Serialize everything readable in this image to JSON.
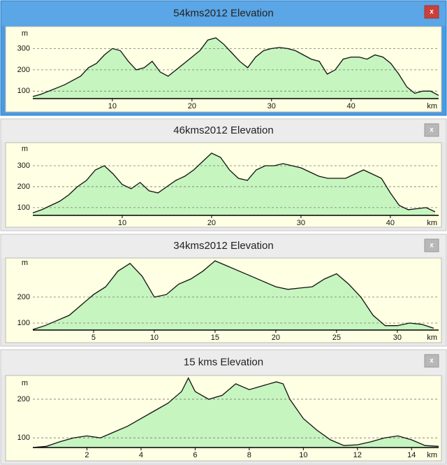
{
  "window_close_label": "x",
  "chart_data": [
    {
      "type": "area",
      "title": "54kms2012 Elevation",
      "active": true,
      "y_label": "m",
      "x_label": "km",
      "color": "#c6f5bf",
      "line_color": "#111111",
      "grid": true,
      "xlim": [
        0,
        51
      ],
      "ylim": [
        65,
        380
      ],
      "xticks": [
        10,
        20,
        30,
        40
      ],
      "yticks": [
        100,
        200,
        300
      ],
      "x": [
        0,
        1,
        2,
        3,
        4,
        5,
        6,
        7,
        8,
        9,
        10,
        11,
        12,
        13,
        14,
        15,
        16,
        17,
        18,
        19,
        20,
        21,
        22,
        23,
        24,
        25,
        26,
        27,
        28,
        29,
        30,
        31,
        32,
        33,
        34,
        35,
        36,
        37,
        38,
        39,
        40,
        41,
        42,
        43,
        44,
        45,
        46,
        47,
        48,
        49,
        50,
        51
      ],
      "values": [
        75,
        85,
        100,
        115,
        130,
        150,
        170,
        210,
        230,
        270,
        300,
        290,
        240,
        200,
        210,
        240,
        190,
        170,
        200,
        230,
        260,
        290,
        340,
        350,
        320,
        280,
        240,
        210,
        260,
        290,
        300,
        305,
        300,
        290,
        270,
        250,
        240,
        180,
        200,
        250,
        260,
        260,
        250,
        270,
        260,
        230,
        180,
        120,
        90,
        100,
        100,
        80
      ]
    },
    {
      "type": "area",
      "title": "46kms2012 Elevation",
      "active": false,
      "y_label": "m",
      "x_label": "km",
      "color": "#c6f5bf",
      "line_color": "#111111",
      "grid": true,
      "xlim": [
        0,
        45.4
      ],
      "ylim": [
        63,
        390
      ],
      "xticks": [
        10,
        20,
        30,
        40
      ],
      "yticks": [
        100,
        200,
        300
      ],
      "x": [
        0,
        1,
        2,
        3,
        4,
        5,
        6,
        7,
        8,
        9,
        10,
        11,
        12,
        13,
        14,
        15,
        16,
        17,
        18,
        19,
        20,
        21,
        22,
        23,
        24,
        25,
        26,
        27,
        28,
        29,
        30,
        31,
        32,
        33,
        34,
        35,
        36,
        37,
        38,
        39,
        40,
        41,
        42,
        43,
        44,
        45
      ],
      "values": [
        75,
        90,
        110,
        130,
        160,
        200,
        230,
        280,
        300,
        260,
        210,
        190,
        220,
        180,
        170,
        200,
        230,
        250,
        280,
        320,
        360,
        340,
        280,
        240,
        230,
        280,
        300,
        300,
        310,
        300,
        290,
        270,
        250,
        240,
        240,
        240,
        260,
        280,
        260,
        240,
        170,
        110,
        90,
        95,
        100,
        80
      ]
    },
    {
      "type": "area",
      "title": "34kms2012 Elevation",
      "active": false,
      "y_label": "m",
      "x_label": "km",
      "color": "#c6f5bf",
      "line_color": "#111111",
      "grid": true,
      "xlim": [
        0,
        33.4
      ],
      "ylim": [
        73,
        340
      ],
      "xticks": [
        5,
        10,
        15,
        20,
        25,
        30
      ],
      "yticks": [
        100,
        200
      ],
      "x": [
        0,
        1,
        2,
        3,
        4,
        5,
        6,
        7,
        8,
        9,
        10,
        11,
        12,
        13,
        14,
        15,
        16,
        17,
        18,
        19,
        20,
        21,
        22,
        23,
        24,
        25,
        26,
        27,
        28,
        29,
        30,
        31,
        32,
        33
      ],
      "values": [
        75,
        90,
        110,
        130,
        170,
        210,
        240,
        300,
        330,
        280,
        200,
        210,
        250,
        270,
        300,
        340,
        320,
        300,
        280,
        260,
        240,
        230,
        235,
        240,
        270,
        290,
        250,
        200,
        130,
        90,
        90,
        100,
        95,
        80
      ]
    },
    {
      "type": "area",
      "title": "15 kms Elevation",
      "active": false,
      "y_label": "m",
      "x_label": "km",
      "color": "#c6f5bf",
      "line_color": "#111111",
      "grid": true,
      "xlim": [
        0,
        15
      ],
      "ylim": [
        75,
        247
      ],
      "xticks": [
        2,
        4,
        6,
        8,
        10,
        12,
        14
      ],
      "yticks": [
        100,
        200
      ],
      "x": [
        0,
        0.5,
        1,
        1.5,
        2,
        2.5,
        3,
        3.5,
        4,
        4.5,
        5,
        5.5,
        5.75,
        6,
        6.5,
        7,
        7.5,
        8,
        8.5,
        9,
        9.25,
        9.5,
        10,
        10.5,
        11,
        11.5,
        12,
        12.5,
        13,
        13.5,
        14,
        14.5,
        15
      ],
      "values": [
        75,
        78,
        90,
        100,
        105,
        100,
        115,
        130,
        150,
        170,
        190,
        220,
        255,
        220,
        200,
        210,
        240,
        225,
        235,
        245,
        240,
        200,
        150,
        120,
        95,
        80,
        82,
        90,
        100,
        105,
        95,
        80,
        78
      ]
    }
  ]
}
